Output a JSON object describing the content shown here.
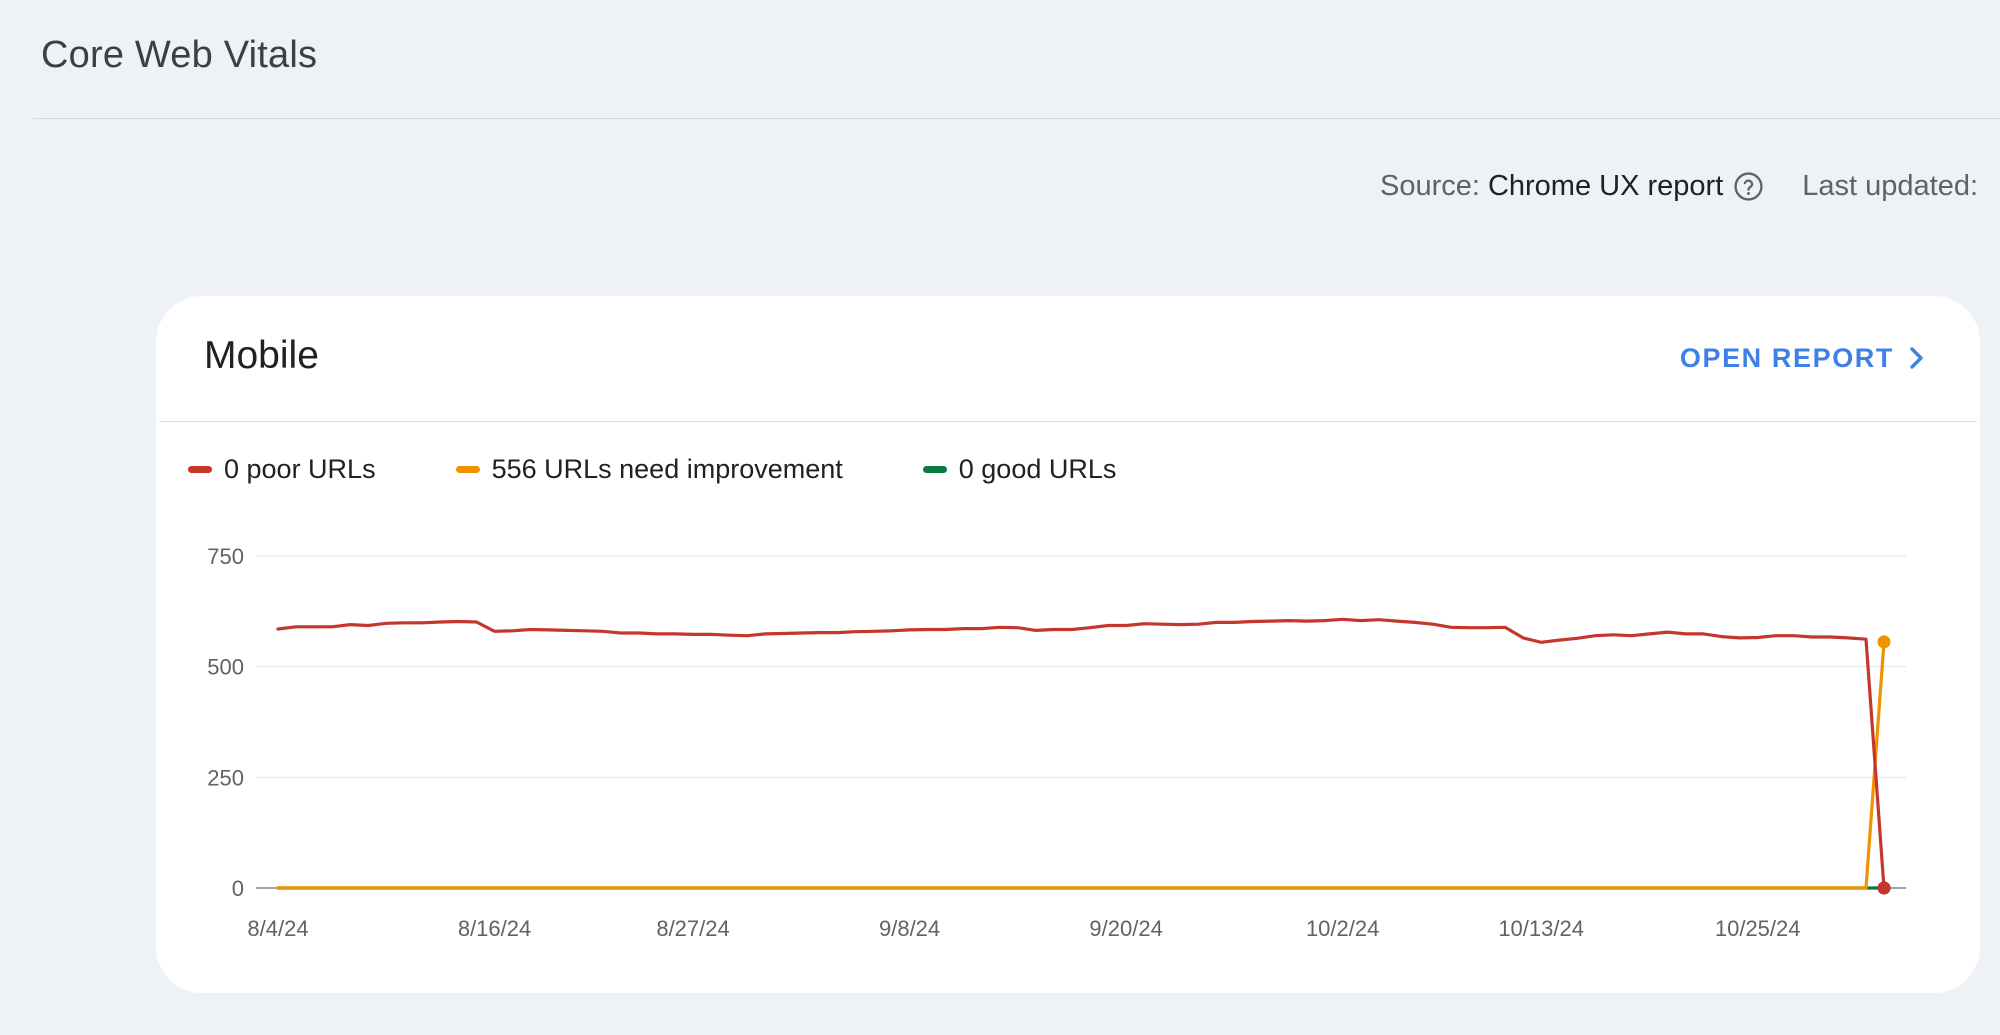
{
  "header": {
    "title": "Core Web Vitals"
  },
  "meta": {
    "source_label": "Source:",
    "source_value": "Chrome UX report",
    "last_updated_label": "Last updated:"
  },
  "icons": {
    "help": "help-circle-icon",
    "open_report": "chevron-right-icon"
  },
  "card": {
    "title": "Mobile",
    "open_report_label": "OPEN REPORT"
  },
  "legend": [
    {
      "label": "0 poor URLs",
      "color": "#c5372c"
    },
    {
      "label": "556 URLs need improvement",
      "color": "#f09300"
    },
    {
      "label": "0 good URLs",
      "color": "#0b7a3f"
    }
  ],
  "chart_data": {
    "type": "line",
    "y_ticks": [
      "750",
      "500",
      "250",
      "0"
    ],
    "x_ticks": [
      "8/4/24",
      "8/16/24",
      "8/27/24",
      "9/8/24",
      "9/20/24",
      "10/2/24",
      "10/13/24",
      "10/25/24"
    ],
    "ylim": [
      0,
      750
    ],
    "x": [
      "2024-08-04",
      "2024-08-05",
      "2024-08-06",
      "2024-08-07",
      "2024-08-08",
      "2024-08-09",
      "2024-08-10",
      "2024-08-11",
      "2024-08-12",
      "2024-08-13",
      "2024-08-14",
      "2024-08-15",
      "2024-08-16",
      "2024-08-17",
      "2024-08-18",
      "2024-08-19",
      "2024-08-20",
      "2024-08-21",
      "2024-08-22",
      "2024-08-23",
      "2024-08-24",
      "2024-08-25",
      "2024-08-26",
      "2024-08-27",
      "2024-08-28",
      "2024-08-29",
      "2024-08-30",
      "2024-08-31",
      "2024-09-01",
      "2024-09-02",
      "2024-09-03",
      "2024-09-04",
      "2024-09-05",
      "2024-09-06",
      "2024-09-07",
      "2024-09-08",
      "2024-09-09",
      "2024-09-10",
      "2024-09-11",
      "2024-09-12",
      "2024-09-13",
      "2024-09-14",
      "2024-09-15",
      "2024-09-16",
      "2024-09-17",
      "2024-09-18",
      "2024-09-19",
      "2024-09-20",
      "2024-09-21",
      "2024-09-22",
      "2024-09-23",
      "2024-09-24",
      "2024-09-25",
      "2024-09-26",
      "2024-09-27",
      "2024-09-28",
      "2024-09-29",
      "2024-09-30",
      "2024-10-01",
      "2024-10-02",
      "2024-10-03",
      "2024-10-04",
      "2024-10-05",
      "2024-10-06",
      "2024-10-07",
      "2024-10-08",
      "2024-10-09",
      "2024-10-10",
      "2024-10-11",
      "2024-10-12",
      "2024-10-13",
      "2024-10-14",
      "2024-10-15",
      "2024-10-16",
      "2024-10-17",
      "2024-10-18",
      "2024-10-19",
      "2024-10-20",
      "2024-10-21",
      "2024-10-22",
      "2024-10-23",
      "2024-10-24",
      "2024-10-25",
      "2024-10-26",
      "2024-10-27",
      "2024-10-28",
      "2024-10-29",
      "2024-10-30",
      "2024-10-31",
      "2024-11-01"
    ],
    "series": [
      {
        "name": "0 poor URLs",
        "color": "#c5372c",
        "values": [
          585,
          590,
          590,
          590,
          595,
          593,
          598,
          599,
          599,
          601,
          602,
          601,
          580,
          581,
          584,
          583,
          582,
          581,
          580,
          576,
          576,
          574,
          574,
          573,
          573,
          571,
          570,
          574,
          575,
          576,
          577,
          577,
          579,
          580,
          581,
          583,
          584,
          584,
          586,
          586,
          589,
          588,
          582,
          584,
          584,
          588,
          593,
          593,
          597,
          596,
          595,
          596,
          600,
          600,
          602,
          603,
          604,
          603,
          604,
          607,
          604,
          606,
          603,
          600,
          596,
          589,
          588,
          588,
          589,
          565,
          555,
          560,
          564,
          570,
          572,
          570,
          574,
          578,
          574,
          574,
          568,
          565,
          566,
          570,
          570,
          567,
          567,
          565,
          562,
          0
        ]
      },
      {
        "name": "556 URLs need improvement",
        "color": "#f09300",
        "values": [
          0,
          0,
          0,
          0,
          0,
          0,
          0,
          0,
          0,
          0,
          0,
          0,
          0,
          0,
          0,
          0,
          0,
          0,
          0,
          0,
          0,
          0,
          0,
          0,
          0,
          0,
          0,
          0,
          0,
          0,
          0,
          0,
          0,
          0,
          0,
          0,
          0,
          0,
          0,
          0,
          0,
          0,
          0,
          0,
          0,
          0,
          0,
          0,
          0,
          0,
          0,
          0,
          0,
          0,
          0,
          0,
          0,
          0,
          0,
          0,
          0,
          0,
          0,
          0,
          0,
          0,
          0,
          0,
          0,
          0,
          0,
          0,
          0,
          0,
          0,
          0,
          0,
          0,
          0,
          0,
          0,
          0,
          0,
          0,
          0,
          0,
          0,
          0,
          0,
          556
        ]
      },
      {
        "name": "0 good URLs",
        "color": "#0b7a3f",
        "values": [
          0,
          0,
          0,
          0,
          0,
          0,
          0,
          0,
          0,
          0,
          0,
          0,
          0,
          0,
          0,
          0,
          0,
          0,
          0,
          0,
          0,
          0,
          0,
          0,
          0,
          0,
          0,
          0,
          0,
          0,
          0,
          0,
          0,
          0,
          0,
          0,
          0,
          0,
          0,
          0,
          0,
          0,
          0,
          0,
          0,
          0,
          0,
          0,
          0,
          0,
          0,
          0,
          0,
          0,
          0,
          0,
          0,
          0,
          0,
          0,
          0,
          0,
          0,
          0,
          0,
          0,
          0,
          0,
          0,
          0,
          0,
          0,
          0,
          0,
          0,
          0,
          0,
          0,
          0,
          0,
          0,
          0,
          0,
          0,
          0,
          0,
          0,
          0,
          0,
          0
        ]
      }
    ],
    "grid": true,
    "legend_position": "top-left"
  }
}
